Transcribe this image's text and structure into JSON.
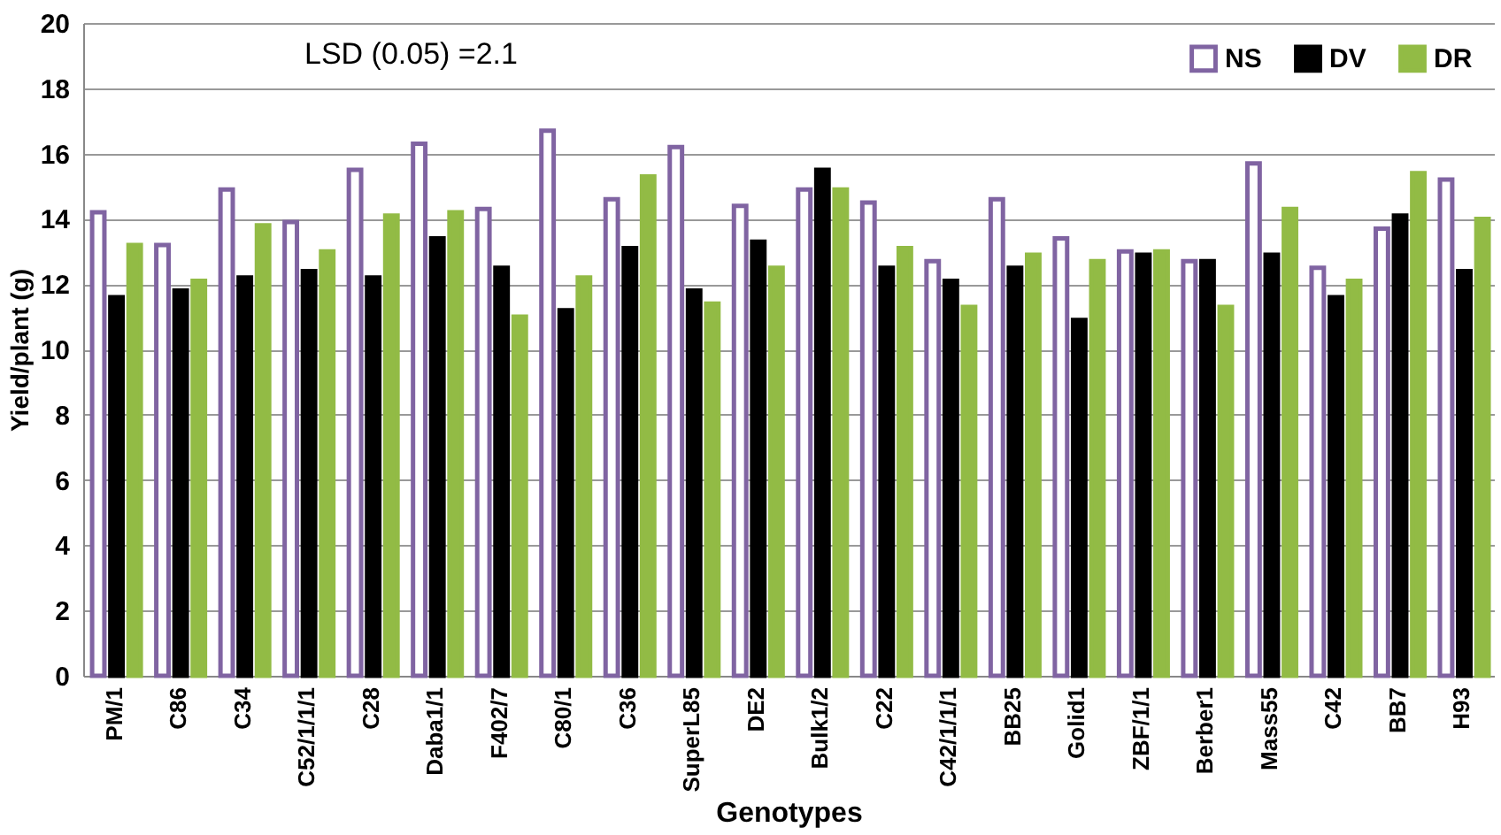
{
  "chart_data": {
    "type": "bar",
    "xlabel": "Genotypes",
    "ylabel": "Yield/plant (g)",
    "categories": [
      "PM/1",
      "C86",
      "C34",
      "C52/1/1/1",
      "C28",
      "Daba1/1",
      "F402/7",
      "C80/1",
      "C36",
      "SuperL85",
      "DE2",
      "Bulk1/2",
      "C22",
      "C42/1/1/1",
      "BB25",
      "Golid1",
      "ZBF/1/1",
      "Berber1",
      "Mass55",
      "C42",
      "BB7",
      "H93"
    ],
    "series": [
      {
        "name": "NS",
        "color": "#8064a2",
        "values": [
          14.2,
          13.2,
          14.9,
          13.9,
          15.5,
          16.3,
          14.3,
          16.7,
          14.6,
          16.2,
          14.4,
          14.9,
          14.5,
          12.7,
          14.6,
          13.4,
          13.0,
          12.7,
          15.7,
          12.5,
          13.7,
          15.2
        ]
      },
      {
        "name": "DV",
        "color": "#000000",
        "values": [
          11.6,
          11.8,
          12.2,
          12.4,
          12.2,
          13.4,
          12.5,
          11.2,
          13.1,
          11.8,
          13.3,
          15.5,
          12.5,
          12.1,
          12.5,
          10.9,
          12.9,
          12.7,
          12.9,
          11.6,
          14.1,
          12.4
        ]
      },
      {
        "name": "DR",
        "color": "#92bb45",
        "values": [
          13.2,
          12.1,
          13.8,
          13.0,
          14.1,
          14.2,
          11.0,
          12.2,
          15.3,
          11.4,
          12.5,
          14.9,
          13.1,
          11.3,
          12.9,
          12.7,
          13.0,
          11.3,
          14.3,
          12.1,
          15.4,
          14.0
        ]
      }
    ],
    "ylim": [
      0,
      20
    ],
    "yticks": [
      0,
      2,
      4,
      6,
      8,
      10,
      12,
      14,
      16,
      18,
      20
    ],
    "grid": "y",
    "legend": "top right",
    "annotations": [
      "LSD (0.05) =2.1"
    ]
  }
}
